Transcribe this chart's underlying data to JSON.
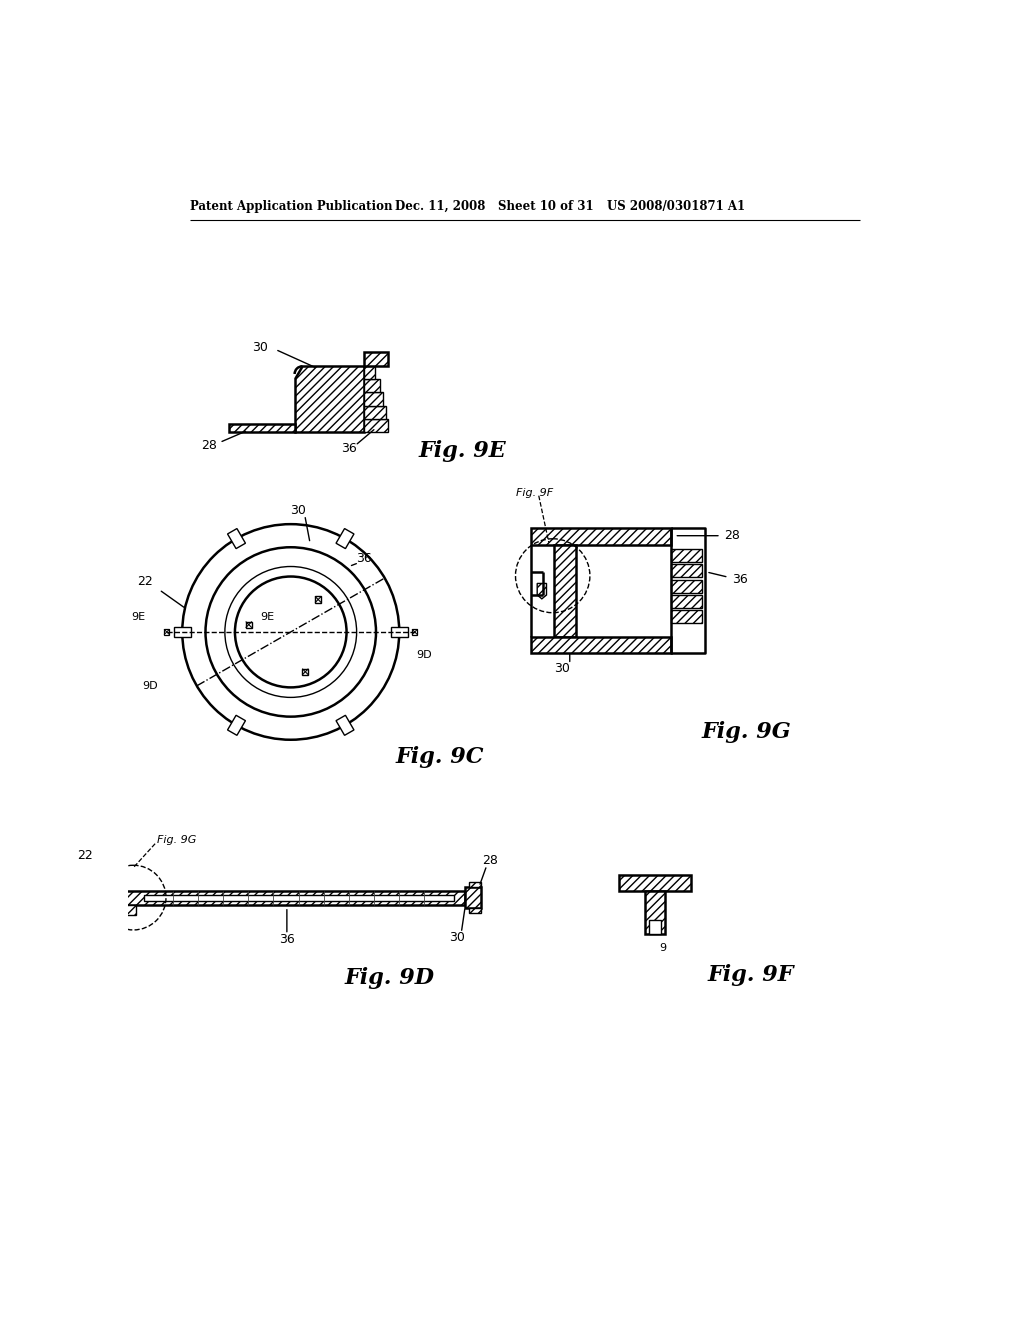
{
  "bg_color": "#ffffff",
  "header_left": "Patent Application Publication",
  "header_date": "Dec. 11, 2008",
  "header_sheet": "Sheet 10 of 31",
  "header_patent": "US 2008/0301871 A1",
  "fig9e_label": "Fig. 9E",
  "fig9c_label": "Fig. 9C",
  "fig9g_label": "Fig. 9G",
  "fig9d_label": "Fig. 9D",
  "fig9f_label": "Fig. 9F"
}
